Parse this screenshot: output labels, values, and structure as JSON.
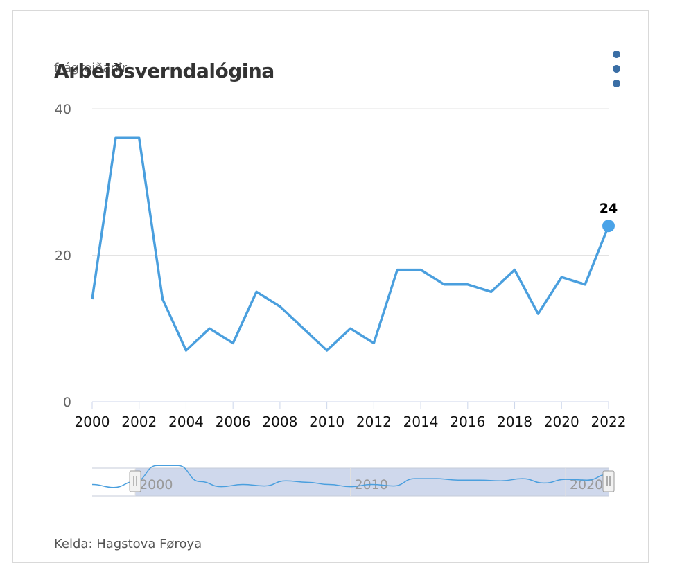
{
  "header": {
    "title": "Arbeiðsverndalógina",
    "unit_label": "frágreiðanir",
    "menu_icon": "vertical-ellipsis-icon"
  },
  "footer": {
    "source": "Kelda: Hagstova Føroya"
  },
  "colors": {
    "line": "#4a9fde",
    "marker": "#4aa3e8",
    "grid": "#e3e3e3",
    "axis_text": "#666666",
    "navigator_fill": "#cfd8ec",
    "menu": "#3a6ea5"
  },
  "chart_data": {
    "type": "line",
    "title": "Arbeiðsverndalógina",
    "ylabel": "frágreiðanir",
    "x": [
      2000,
      2001,
      2002,
      2003,
      2004,
      2005,
      2006,
      2007,
      2008,
      2009,
      2010,
      2011,
      2012,
      2013,
      2014,
      2015,
      2016,
      2017,
      2018,
      2019,
      2020,
      2021,
      2022
    ],
    "series": [
      {
        "name": "",
        "values": [
          14,
          36,
          36,
          14,
          7,
          10,
          8,
          15,
          13,
          10,
          7,
          10,
          8,
          18,
          18,
          16,
          16,
          15,
          18,
          12,
          17,
          16,
          24
        ]
      }
    ],
    "xlim": [
      2000,
      2022
    ],
    "ylim": [
      0,
      40
    ],
    "yticks": [
      0,
      20,
      40
    ],
    "xticks": [
      2000,
      2002,
      2004,
      2006,
      2008,
      2010,
      2012,
      2014,
      2016,
      2018,
      2020,
      2022
    ],
    "last_point_label": "24",
    "grid": "horizontal",
    "navigator": {
      "xlim": [
        1998,
        2022
      ],
      "selected_range": [
        2000,
        2022
      ],
      "tick_labels": [
        "2000",
        "2010",
        "2020"
      ]
    }
  }
}
